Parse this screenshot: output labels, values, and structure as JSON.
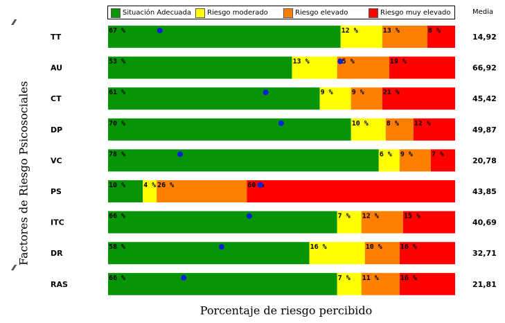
{
  "chart_data": {
    "type": "bar",
    "stacked": true,
    "orientation": "horizontal",
    "categories": [
      "TT",
      "AU",
      "CT",
      "DP",
      "VC",
      "PS",
      "ITC",
      "DR",
      "RAS"
    ],
    "series": [
      {
        "name": "Situación Adecuada",
        "color": "#079507",
        "values": [
          67,
          53,
          61,
          70,
          78,
          10,
          66,
          58,
          66
        ]
      },
      {
        "name": "Riesgo moderado",
        "color": "#ffff00",
        "values": [
          12,
          13,
          9,
          10,
          6,
          4,
          7,
          16,
          7
        ]
      },
      {
        "name": "Riesgo elevado",
        "color": "#ff8000",
        "values": [
          13,
          15,
          9,
          8,
          9,
          26,
          12,
          10,
          11
        ]
      },
      {
        "name": "Riesgo muy elevado",
        "color": "#ff0000",
        "values": [
          8,
          19,
          21,
          12,
          7,
          60,
          15,
          16,
          16
        ]
      }
    ],
    "media_label": "Media",
    "media": [
      "14,92",
      "66,92",
      "45,42",
      "49,87",
      "20,78",
      "43,85",
      "40,69",
      "32,71",
      "21,81"
    ],
    "media_values": [
      14.92,
      66.92,
      45.42,
      49.87,
      20.78,
      43.85,
      40.69,
      32.71,
      21.81
    ],
    "marker_color": "#0a1fd6",
    "xlabel": "Porcentaje de riesgo percibido",
    "ylabel": "Factores de Riesgo Psicosociales",
    "xlim": [
      0,
      100
    ],
    "legend_position": "top"
  }
}
